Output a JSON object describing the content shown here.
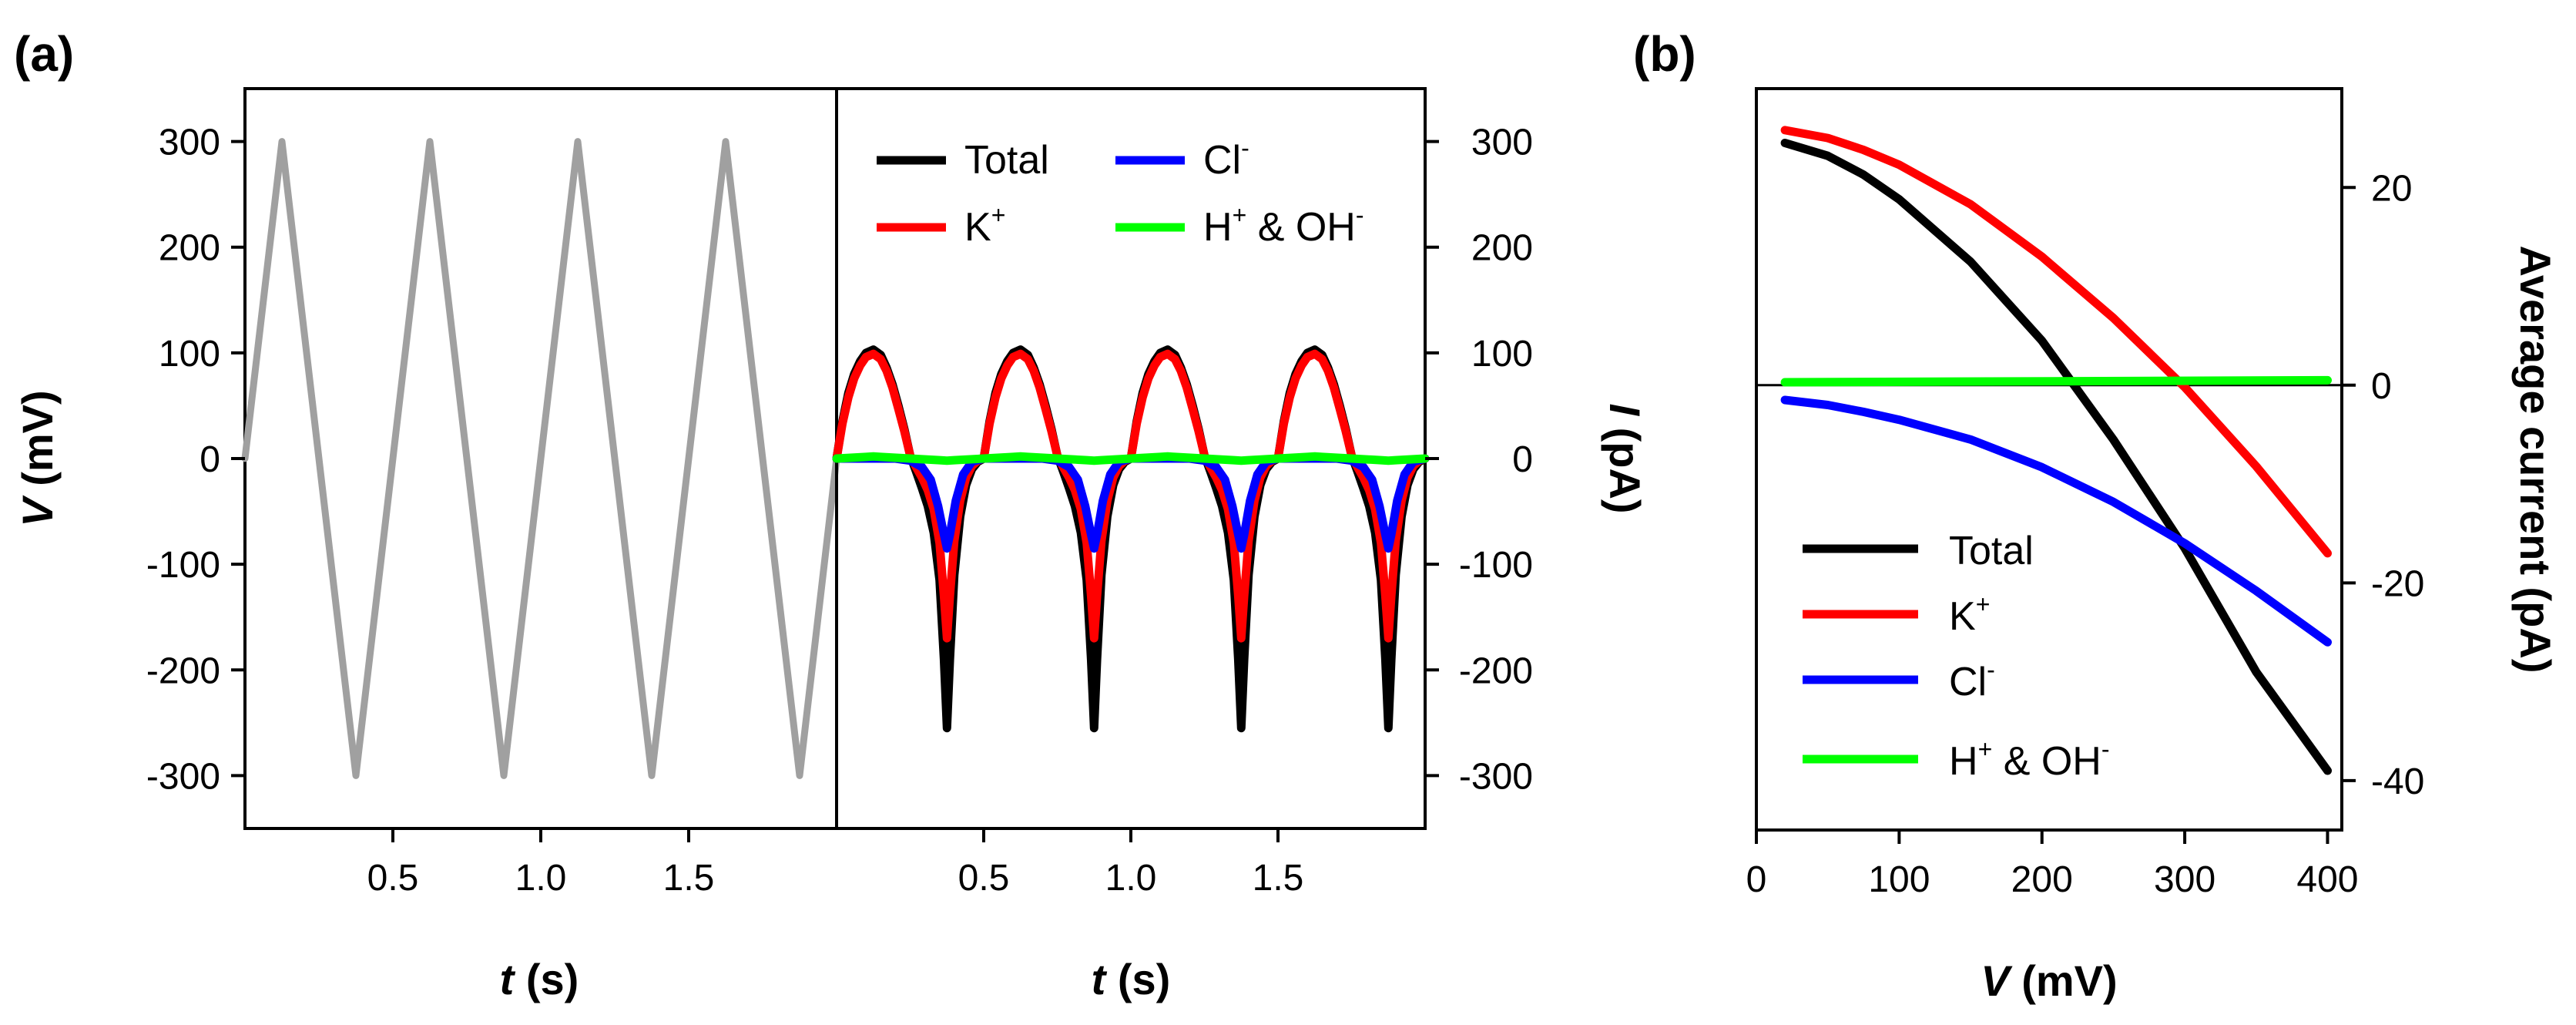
{
  "panels": {
    "a": {
      "tag": "(a)"
    },
    "b": {
      "tag": "(b)"
    }
  },
  "chart_data": [
    {
      "id": "a-left",
      "type": "line",
      "title": "",
      "xlabel": "t (s)",
      "ylabel": "V (mV)",
      "xlim": [
        0,
        2
      ],
      "ylim": [
        -350,
        350
      ],
      "xticks": [
        "0.5",
        "1.0",
        "1.5"
      ],
      "xtick_values": [
        0.5,
        1.0,
        1.5
      ],
      "yticks": [
        "300",
        "200",
        "100",
        "0",
        "-100",
        "-200",
        "-300"
      ],
      "ytick_values": [
        300,
        200,
        100,
        0,
        -100,
        -200,
        -300
      ],
      "series": [
        {
          "name": "V",
          "color": "#a0a0a0",
          "x": [
            0,
            0.125,
            0.375,
            0.625,
            0.875,
            1.125,
            1.375,
            1.625,
            1.875,
            2.0
          ],
          "y": [
            0,
            300,
            -300,
            300,
            -300,
            300,
            -300,
            300,
            -300,
            0
          ]
        }
      ]
    },
    {
      "id": "a-right",
      "type": "line",
      "title": "",
      "xlabel": "t (s)",
      "ylabel": "I (pA)",
      "xlim": [
        0,
        2
      ],
      "ylim": [
        -350,
        350
      ],
      "xticks": [
        "0.5",
        "1.0",
        "1.5"
      ],
      "xtick_values": [
        0.5,
        1.0,
        1.5
      ],
      "yticks": [
        "300",
        "200",
        "100",
        "0",
        "-100",
        "-200",
        "-300"
      ],
      "ytick_values": [
        300,
        200,
        100,
        0,
        -100,
        -200,
        -300
      ],
      "period": 0.5,
      "legend_position": "top",
      "series": [
        {
          "name": "Total",
          "color": "#000000",
          "x": [
            0,
            0.02,
            0.04,
            0.06,
            0.08,
            0.1,
            0.125,
            0.15,
            0.17,
            0.19,
            0.21,
            0.23,
            0.25,
            0.27,
            0.29,
            0.31,
            0.33,
            0.35,
            0.365,
            0.375,
            0.385,
            0.4,
            0.42,
            0.44,
            0.46,
            0.48,
            0.5
          ],
          "y": [
            0,
            35,
            62,
            80,
            92,
            100,
            103,
            98,
            86,
            70,
            50,
            28,
            3,
            -12,
            -28,
            -45,
            -70,
            -115,
            -190,
            -255,
            -190,
            -110,
            -55,
            -25,
            -10,
            -3,
            0
          ]
        },
        {
          "name": "K+",
          "color": "#ff0000",
          "x": [
            0,
            0.02,
            0.04,
            0.06,
            0.08,
            0.1,
            0.125,
            0.15,
            0.17,
            0.19,
            0.21,
            0.23,
            0.25,
            0.27,
            0.29,
            0.31,
            0.33,
            0.35,
            0.365,
            0.375,
            0.385,
            0.4,
            0.42,
            0.44,
            0.46,
            0.48,
            0.5
          ],
          "y": [
            0,
            33,
            58,
            76,
            88,
            96,
            99,
            94,
            83,
            67,
            47,
            26,
            3,
            -8,
            -18,
            -30,
            -48,
            -80,
            -130,
            -170,
            -130,
            -78,
            -40,
            -18,
            -7,
            -2,
            0
          ]
        },
        {
          "name": "Cl-",
          "color": "#0000ff",
          "x": [
            0,
            0.1,
            0.2,
            0.25,
            0.29,
            0.32,
            0.345,
            0.365,
            0.375,
            0.385,
            0.405,
            0.43,
            0.46,
            0.5
          ],
          "y": [
            0,
            0,
            0,
            -2,
            -8,
            -20,
            -45,
            -72,
            -85,
            -72,
            -40,
            -15,
            -3,
            0
          ]
        },
        {
          "name": "H+ & OH-",
          "color": "#00ff00",
          "x": [
            0,
            0.1,
            0.125,
            0.15,
            0.25,
            0.35,
            0.375,
            0.4,
            0.5
          ],
          "y": [
            0,
            1.5,
            2,
            1.5,
            0,
            -1.5,
            -2,
            -1.5,
            0
          ]
        }
      ]
    },
    {
      "id": "b",
      "type": "line",
      "title": "",
      "xlabel": "V (mV)",
      "ylabel": "Average current (pA)",
      "xlim": [
        0,
        410
      ],
      "ylim": [
        -45,
        30
      ],
      "xticks": [
        "0",
        "100",
        "200",
        "300",
        "400"
      ],
      "xtick_values": [
        0,
        100,
        200,
        300,
        400
      ],
      "yticks": [
        "20",
        "0",
        "-20",
        "-40"
      ],
      "ytick_values": [
        20,
        0,
        -20,
        -40
      ],
      "legend_position": "bottom-left",
      "series": [
        {
          "name": "Total",
          "color": "#000000",
          "x": [
            20,
            50,
            75,
            100,
            150,
            200,
            250,
            300,
            350,
            400
          ],
          "y": [
            24.5,
            23.2,
            21.3,
            18.8,
            12.5,
            4.5,
            -5.5,
            -16.5,
            -29.0,
            -39.0
          ]
        },
        {
          "name": "K+",
          "color": "#ff0000",
          "x": [
            20,
            50,
            75,
            100,
            150,
            200,
            250,
            300,
            350,
            400
          ],
          "y": [
            25.8,
            25.0,
            23.8,
            22.3,
            18.3,
            13.0,
            6.8,
            -0.2,
            -8.2,
            -17.0
          ]
        },
        {
          "name": "Cl-",
          "color": "#0000ff",
          "x": [
            20,
            50,
            75,
            100,
            150,
            200,
            250,
            300,
            350,
            400
          ],
          "y": [
            -1.5,
            -2.0,
            -2.7,
            -3.5,
            -5.5,
            -8.3,
            -11.8,
            -16.0,
            -20.8,
            -26.0
          ]
        },
        {
          "name": "H+ & OH-",
          "color": "#00ff00",
          "x": [
            20,
            400
          ],
          "y": [
            0.3,
            0.5
          ]
        }
      ]
    }
  ]
}
